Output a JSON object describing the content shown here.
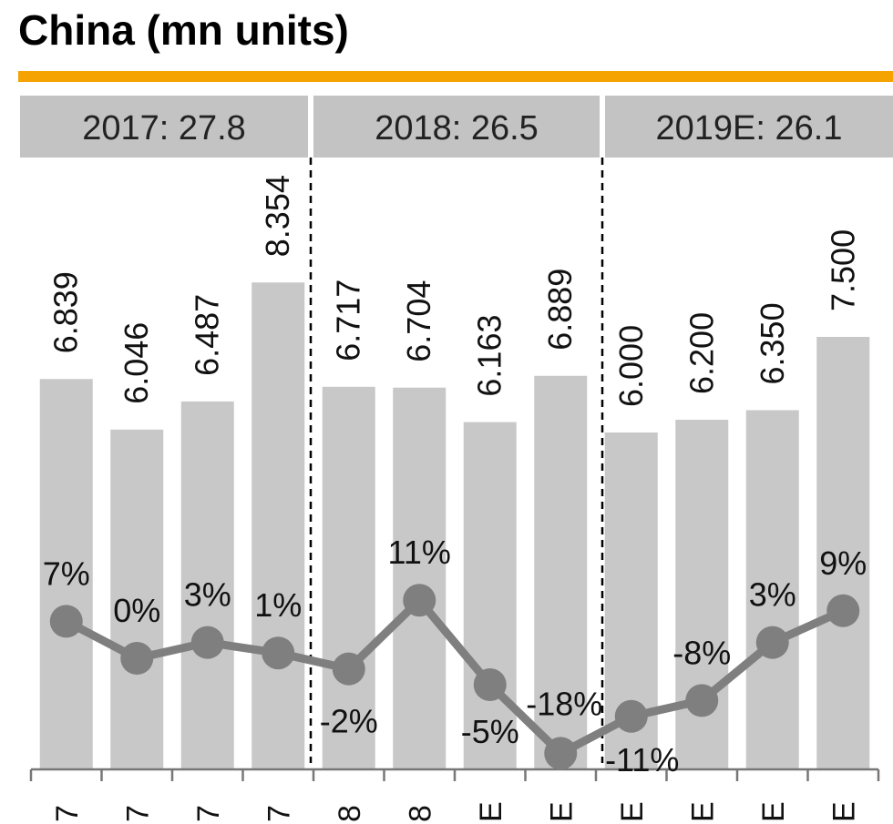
{
  "title": "China (mn units)",
  "colors": {
    "accent": "#f5a300",
    "bar": "#c8c8c8",
    "line": "#7f7f7f",
    "year_box": "#c3c3c3"
  },
  "chart_data": {
    "type": "bar",
    "title": "China (mn units)",
    "year_groups": [
      {
        "label": "2017: 27.8"
      },
      {
        "label": "2018: 26.5"
      },
      {
        "label": "2019E: 26.1"
      }
    ],
    "tick_labels": [
      "7",
      "7",
      "7",
      "7",
      "8",
      "8",
      "E",
      "E",
      "E",
      "E",
      "E",
      "E"
    ],
    "series": [
      {
        "values": [
          6.839,
          6.046,
          6.487,
          8.354,
          6.717,
          6.704,
          6.163,
          6.889,
          6.0,
          6.2,
          6.35,
          7.5
        ],
        "labels": [
          "6.839",
          "6.046",
          "6.487",
          "8.354",
          "6.717",
          "6.704",
          "6.163",
          "6.889",
          "6.000",
          "6.200",
          "6.350",
          "7.500"
        ]
      },
      {
        "type": "line",
        "values": [
          7,
          0,
          3,
          1,
          -2,
          11,
          -5,
          -18,
          -11,
          -8,
          3,
          9
        ],
        "labels": [
          "7%",
          "0%",
          "3%",
          "1%",
          "-2%",
          "11%",
          "-5%",
          "-18%",
          "-11%",
          "-8%",
          "3%",
          "9%"
        ]
      }
    ]
  }
}
